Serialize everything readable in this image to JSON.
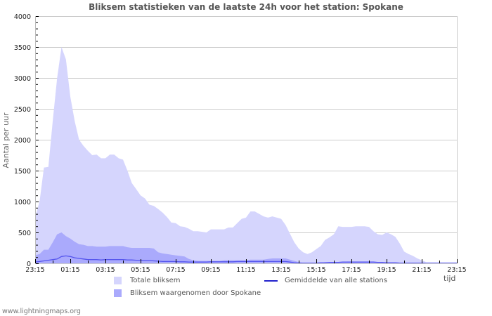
{
  "title": "Bliksem statistieken van de laatste 24h voor het station: Spokane",
  "footer": "www.lightningmaps.org",
  "axes": {
    "ylabel": "Aantal per uur",
    "xlabel": "tijd",
    "yticks": [
      "0",
      "500",
      "1000",
      "1500",
      "2000",
      "2500",
      "3000",
      "3500",
      "4000"
    ],
    "xticks": [
      "23:15",
      "01:15",
      "03:15",
      "05:15",
      "07:15",
      "09:15",
      "11:15",
      "13:15",
      "15:15",
      "17:15",
      "19:15",
      "21:15",
      "23:15"
    ]
  },
  "legend": {
    "total": {
      "label": "Totale bliksem",
      "color": "#d5d5fd"
    },
    "station": {
      "label": "Bliksem waargenomen door Spokane",
      "color": "#aaaafc"
    },
    "average": {
      "label": "Gemiddelde van alle stations",
      "color": "#2222cc"
    }
  },
  "chart_data": {
    "type": "area",
    "title": "Bliksem statistieken van de laatste 24h voor het station: Spokane",
    "xlabel": "tijd",
    "ylabel": "Aantal per uur",
    "ylim": [
      0,
      4000
    ],
    "grid": true,
    "legend_position": "bottom",
    "x_start": "23:15",
    "x_end": "23:15",
    "x_step_minutes": 15,
    "x_ticks": [
      "23:15",
      "01:15",
      "03:15",
      "05:15",
      "07:15",
      "09:15",
      "11:15",
      "13:15",
      "15:15",
      "17:15",
      "19:15",
      "21:15",
      "23:15"
    ],
    "series": [
      {
        "name": "Totale bliksem",
        "color": "#d5d5fd",
        "values": [
          750,
          1000,
          1550,
          1560,
          2300,
          3000,
          3500,
          3300,
          2700,
          2300,
          2000,
          1900,
          1820,
          1750,
          1760,
          1700,
          1700,
          1760,
          1760,
          1700,
          1680,
          1500,
          1300,
          1200,
          1100,
          1050,
          950,
          930,
          880,
          820,
          750,
          660,
          650,
          600,
          590,
          560,
          520,
          520,
          510,
          500,
          550,
          550,
          550,
          550,
          580,
          580,
          650,
          720,
          740,
          840,
          840,
          800,
          760,
          740,
          760,
          740,
          720,
          620,
          480,
          340,
          240,
          180,
          150,
          180,
          230,
          280,
          380,
          420,
          470,
          600,
          590,
          590,
          590,
          600,
          600,
          600,
          590,
          520,
          470,
          460,
          500,
          470,
          430,
          320,
          190,
          150,
          120,
          80,
          50,
          20,
          20,
          20,
          20,
          20,
          20,
          20,
          20
        ]
      },
      {
        "name": "Bliksem waargenomen door Spokane",
        "color": "#aaaafc",
        "values": [
          130,
          150,
          220,
          220,
          340,
          470,
          500,
          440,
          400,
          350,
          310,
          300,
          280,
          280,
          270,
          270,
          270,
          280,
          280,
          280,
          280,
          260,
          250,
          250,
          250,
          250,
          250,
          240,
          180,
          160,
          150,
          140,
          130,
          120,
          110,
          70,
          50,
          40,
          40,
          40,
          40,
          40,
          40,
          50,
          50,
          50,
          50,
          50,
          50,
          60,
          60,
          60,
          60,
          70,
          80,
          80,
          80,
          80,
          60,
          40,
          20,
          10,
          10,
          5,
          10,
          10,
          20,
          20,
          20,
          20,
          20,
          30,
          30,
          30,
          30,
          30,
          30,
          30,
          20,
          20,
          10,
          10,
          10,
          5,
          5,
          5,
          5,
          5,
          5,
          0,
          0,
          0,
          0,
          0,
          0,
          0,
          0
        ]
      },
      {
        "name": "Gemiddelde van alle stations",
        "color": "#2222cc",
        "values": [
          20,
          30,
          40,
          50,
          60,
          70,
          110,
          120,
          110,
          90,
          80,
          70,
          60,
          60,
          60,
          55,
          60,
          60,
          60,
          60,
          60,
          55,
          55,
          50,
          50,
          45,
          45,
          40,
          35,
          30,
          30,
          30,
          30,
          25,
          25,
          20,
          20,
          20,
          20,
          20,
          25,
          25,
          25,
          25,
          25,
          25,
          30,
          30,
          30,
          30,
          30,
          30,
          30,
          30,
          30,
          30,
          30,
          30,
          20,
          10,
          5,
          5,
          5,
          5,
          5,
          10,
          10,
          15,
          15,
          15,
          20,
          20,
          20,
          20,
          20,
          20,
          20,
          20,
          15,
          15,
          10,
          10,
          10,
          5,
          5,
          5,
          5,
          5,
          5,
          0,
          0,
          0,
          0,
          0,
          0,
          0,
          0
        ]
      }
    ]
  }
}
